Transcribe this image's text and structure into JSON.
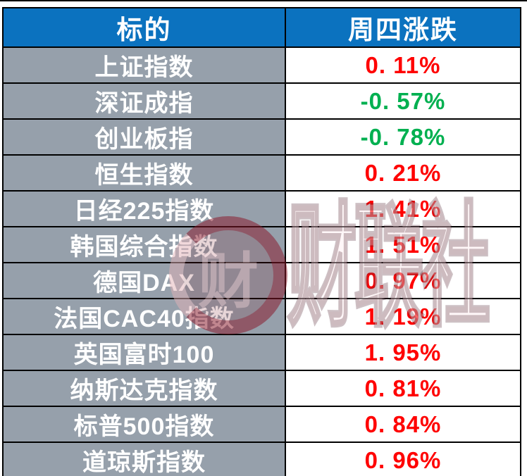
{
  "table": {
    "headers": [
      "标的",
      "周四涨跌"
    ],
    "rows": [
      {
        "label": "上证指数",
        "value": "0. 11%",
        "direction": "up"
      },
      {
        "label": "深证成指",
        "value": "-0. 57%",
        "direction": "down"
      },
      {
        "label": "创业板指",
        "value": "-0. 78%",
        "direction": "down"
      },
      {
        "label": "恒生指数",
        "value": "0. 21%",
        "direction": "up"
      },
      {
        "label": "日经225指数",
        "value": "1. 41%",
        "direction": "up"
      },
      {
        "label": "韩国综合指数",
        "value": "1. 51%",
        "direction": "up"
      },
      {
        "label": "德国DAX",
        "value": "0. 97%",
        "direction": "up"
      },
      {
        "label": "法国CAC40指数",
        "value": "1. 19%",
        "direction": "up"
      },
      {
        "label": "英国富时100",
        "value": "1. 95%",
        "direction": "up"
      },
      {
        "label": "纳斯达克指数",
        "value": "0. 81%",
        "direction": "up"
      },
      {
        "label": "标普500指数",
        "value": "0. 84%",
        "direction": "up"
      },
      {
        "label": "道琼斯指数",
        "value": "0. 96%",
        "direction": "up"
      }
    ]
  },
  "watermark": {
    "logo_char": "财",
    "text": "财联社"
  },
  "colors": {
    "headerBg": "#0B72BF",
    "labelBg": "#96A0AB",
    "up": "#FF0000",
    "down": "#00B050",
    "border": "#000000",
    "cellText": "#FFFFFF"
  },
  "chart_data": {
    "type": "table",
    "columns": [
      "标的",
      "周四涨跌"
    ],
    "categories": [
      "上证指数",
      "深证成指",
      "创业板指",
      "恒生指数",
      "日经225指数",
      "韩国综合指数",
      "德国DAX",
      "法国CAC40指数",
      "英国富时100",
      "纳斯达克指数",
      "标普500指数",
      "道琼斯指数"
    ],
    "values": [
      0.11,
      -0.57,
      -0.78,
      0.21,
      1.41,
      1.51,
      0.97,
      1.19,
      1.95,
      0.81,
      0.84,
      0.96
    ],
    "value_unit": "%",
    "positive_color": "#FF0000",
    "negative_color": "#00B050"
  }
}
